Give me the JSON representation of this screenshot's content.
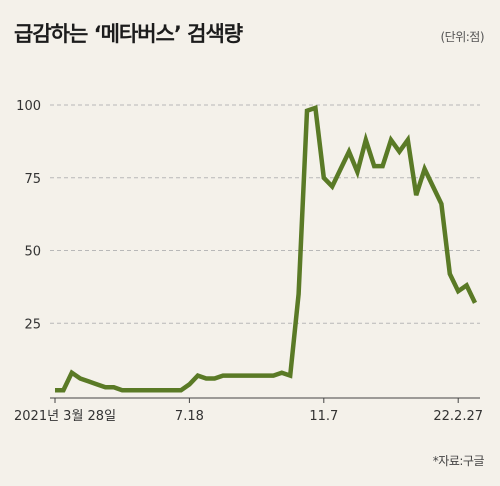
{
  "header": {
    "title": "급감하는 ‘메타버스’ 검색량",
    "unit": "(단위:점)"
  },
  "footer": {
    "source": "*자료:구글"
  },
  "colors": {
    "line": "#5a7a26",
    "grid": "#b8b8b8",
    "background": "#f4f1ea"
  },
  "chart_data": {
    "type": "line",
    "title": "급감하는 ‘메타버스’ 검색량",
    "xlabel": "",
    "ylabel": "",
    "ylim": [
      0,
      100
    ],
    "grid": true,
    "y_ticks": [
      "100",
      "75",
      "50",
      "25"
    ],
    "x_tick_labels": [
      {
        "label": "2021년 3월 28일",
        "index": 0
      },
      {
        "label": "7.18",
        "index": 16
      },
      {
        "label": "11.7",
        "index": 32
      },
      {
        "label": "22.2.27",
        "index": 48
      }
    ],
    "series": [
      {
        "values": [
          2,
          2,
          8,
          6,
          5,
          4,
          3,
          3,
          2,
          2,
          2,
          2,
          2,
          2,
          2,
          2,
          4,
          7,
          6,
          6,
          7,
          7,
          7,
          7,
          7,
          7,
          7,
          8,
          7,
          35,
          98,
          99,
          75,
          72,
          78,
          84,
          77,
          88,
          79,
          79,
          88,
          84,
          88,
          69,
          78,
          72,
          66,
          42,
          36,
          38,
          32
        ]
      }
    ]
  }
}
